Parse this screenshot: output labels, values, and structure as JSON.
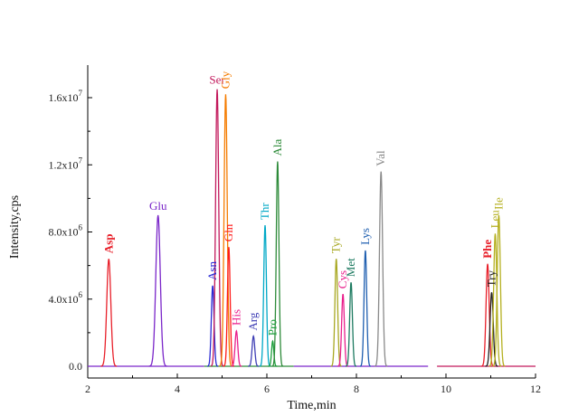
{
  "chart_data": {
    "type": "line",
    "title": "",
    "xlabel": "Time,min",
    "ylabel": "Intensity,cps",
    "xlim": [
      2,
      12
    ],
    "ylim": [
      -0.1,
      1.75
    ],
    "xticks": [
      2,
      4,
      6,
      8,
      10,
      12
    ],
    "xtick_labels": [
      "2",
      "4",
      "6",
      "8",
      "10",
      "12"
    ],
    "yticks": [
      0,
      0.4,
      0.8,
      1.2,
      1.6
    ],
    "ytick_labels": [
      {
        "base": "0.0",
        "exp": ""
      },
      {
        "base": "4.0x10",
        "exp": "6"
      },
      {
        "base": "8.0x10",
        "exp": "6"
      },
      {
        "base": "1.2x10",
        "exp": "7"
      },
      {
        "base": "1.6x10",
        "exp": "7"
      }
    ],
    "y_unit_note": "peak heights in units of 1x10^7 cps",
    "grid": false,
    "peaks": [
      {
        "label": "Asp",
        "rt": 2.47,
        "height": 0.64,
        "width": 0.045,
        "color": "#e8202a",
        "label_rot": -90,
        "bold": true
      },
      {
        "label": "Glu",
        "rt": 3.57,
        "height": 0.9,
        "width": 0.05,
        "color": "#7a26c9",
        "label_rot": 0,
        "bold": false
      },
      {
        "label": "Asn",
        "rt": 4.79,
        "height": 0.48,
        "width": 0.03,
        "color": "#2a2ad4",
        "label_rot": -90,
        "bold": false
      },
      {
        "label": "Ser",
        "rt": 4.89,
        "height": 1.65,
        "width": 0.035,
        "color": "#c2185b",
        "label_rot": 0,
        "bold": false
      },
      {
        "label": "Gly",
        "rt": 5.08,
        "height": 1.62,
        "width": 0.035,
        "color": "#f57c00",
        "label_rot": -90,
        "bold": false
      },
      {
        "label": "Gln",
        "rt": 5.15,
        "height": 0.71,
        "width": 0.03,
        "color": "#ff1a1a",
        "label_rot": -90,
        "bold": false
      },
      {
        "label": "His",
        "rt": 5.32,
        "height": 0.21,
        "width": 0.03,
        "color": "#e91e8c",
        "label_rot": -90,
        "bold": false
      },
      {
        "label": "Arg",
        "rt": 5.7,
        "height": 0.18,
        "width": 0.03,
        "color": "#3f3fb5",
        "label_rot": -90,
        "bold": false
      },
      {
        "label": "Thr",
        "rt": 5.96,
        "height": 0.84,
        "width": 0.03,
        "color": "#00a8c6",
        "label_rot": -90,
        "bold": false
      },
      {
        "label": "Pro",
        "rt": 6.13,
        "height": 0.15,
        "width": 0.025,
        "color": "#1b9e3a",
        "label_rot": -90,
        "bold": false
      },
      {
        "label": "Ala",
        "rt": 6.24,
        "height": 1.22,
        "width": 0.03,
        "color": "#2e8b3a",
        "label_rot": -90,
        "bold": false
      },
      {
        "label": "Tyr",
        "rt": 7.55,
        "height": 0.64,
        "width": 0.03,
        "color": "#a8a822",
        "label_rot": -90,
        "bold": false
      },
      {
        "label": "Cys",
        "rt": 7.7,
        "height": 0.43,
        "width": 0.03,
        "color": "#e91e8c",
        "label_rot": -90,
        "bold": false
      },
      {
        "label": "Met",
        "rt": 7.88,
        "height": 0.5,
        "width": 0.03,
        "color": "#1d7a60",
        "label_rot": -90,
        "bold": false
      },
      {
        "label": "Lys",
        "rt": 8.2,
        "height": 0.69,
        "width": 0.03,
        "color": "#1f5fb0",
        "label_rot": -90,
        "bold": false
      },
      {
        "label": "Val",
        "rt": 8.55,
        "height": 1.16,
        "width": 0.035,
        "color": "#8a8a8a",
        "label_rot": -90,
        "bold": false
      },
      {
        "label": "Phe",
        "rt": 10.93,
        "height": 0.61,
        "width": 0.035,
        "color": "#e8202a",
        "label_rot": -90,
        "bold": true
      },
      {
        "label": "Try",
        "rt": 11.02,
        "height": 0.44,
        "width": 0.035,
        "color": "#222222",
        "label_rot": -90,
        "bold": false
      },
      {
        "label": "Leu",
        "rt": 11.1,
        "height": 0.79,
        "width": 0.035,
        "color": "#b5b020",
        "label_rot": -90,
        "bold": false
      },
      {
        "label": "Ile",
        "rt": 11.18,
        "height": 0.9,
        "width": 0.035,
        "color": "#b5b020",
        "label_rot": -90,
        "bold": false
      }
    ],
    "baseline_segments": [
      {
        "x0": 2.0,
        "x1": 4.6,
        "color": "#7a26c9"
      },
      {
        "x0": 4.6,
        "x1": 6.6,
        "color": "#2e8b3a"
      },
      {
        "x0": 6.6,
        "x1": 9.6,
        "color": "#7a26c9"
      },
      {
        "x0": 9.8,
        "x1": 12.0,
        "color": "#c2185b"
      }
    ]
  }
}
